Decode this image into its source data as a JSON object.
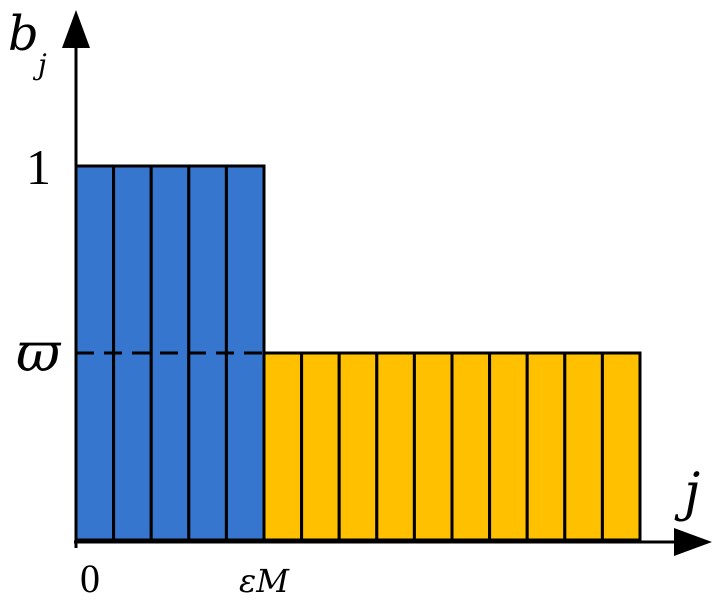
{
  "chart_data": {
    "type": "bar",
    "ylabel_base": "b",
    "ylabel_sub": "j",
    "xlabel": "j",
    "y_ticks": [
      {
        "value": 1,
        "label": "1"
      },
      {
        "value": 0.5,
        "label": "ϖ"
      }
    ],
    "x_ticks": [
      {
        "index": 0,
        "label": "0"
      },
      {
        "index": 5,
        "label": "εM"
      }
    ],
    "ylim": [
      0,
      1.2
    ],
    "series": [
      {
        "values": [
          1,
          1,
          1,
          1,
          1
        ],
        "color": "#3776CE"
      },
      {
        "values": [
          0.5,
          0.5,
          0.5,
          0.5,
          0.5,
          0.5,
          0.5,
          0.5,
          0.5,
          0.5
        ],
        "color": "#FFC000"
      }
    ],
    "reference_line": {
      "value": 0.5,
      "style": "dashed"
    },
    "colors": {
      "high": "#3776CE",
      "low": "#FFC000",
      "stroke": "#000000"
    }
  }
}
